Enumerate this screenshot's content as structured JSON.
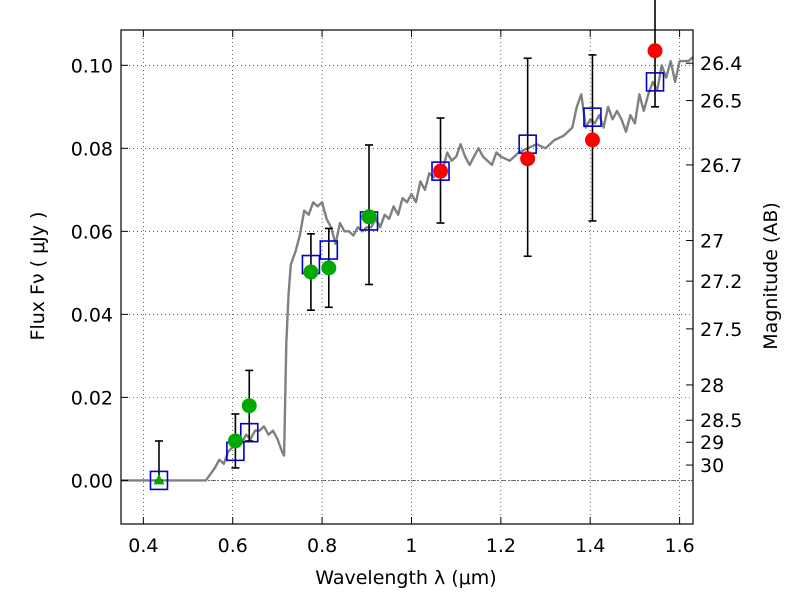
{
  "chart_data": {
    "type": "scatter",
    "xlabel": "Wavelength  λ (μm)",
    "ylabel": "Flux  Fν  ( μJy )",
    "ylabel_right": "Magnitude (AB)",
    "xlim": [
      0.35,
      1.63
    ],
    "ylim": [
      -0.0105,
      0.1085
    ],
    "grid": true,
    "x_ticks": [
      0.4,
      0.6,
      0.8,
      1.0,
      1.2,
      1.4,
      1.6
    ],
    "x_tick_labels": [
      "0.4",
      "0.6",
      "0.8",
      "1",
      "1.2",
      "1.4",
      "1.6"
    ],
    "y_ticks": [
      0.0,
      0.02,
      0.04,
      0.06,
      0.08,
      0.1
    ],
    "y_tick_labels": [
      "0.00",
      "0.02",
      "0.04",
      "0.06",
      "0.08",
      "0.10"
    ],
    "right_ticks": [
      {
        "label": "26.4",
        "flux": 0.1005
      },
      {
        "label": "26.5",
        "flux": 0.0915
      },
      {
        "label": "26.7",
        "flux": 0.076
      },
      {
        "label": "27",
        "flux": 0.0578
      },
      {
        "label": "27.2",
        "flux": 0.048
      },
      {
        "label": "27.5",
        "flux": 0.0365
      },
      {
        "label": "28",
        "flux": 0.023
      },
      {
        "label": "28.5",
        "flux": 0.0145
      },
      {
        "label": "29",
        "flux": 0.0092
      },
      {
        "label": "30",
        "flux": 0.0037
      }
    ],
    "model_spectrum": {
      "color": "#808080",
      "x": [
        0.35,
        0.45,
        0.5,
        0.54,
        0.56,
        0.57,
        0.58,
        0.59,
        0.6,
        0.61,
        0.62,
        0.63,
        0.64,
        0.65,
        0.66,
        0.67,
        0.68,
        0.69,
        0.7,
        0.71,
        0.715,
        0.72,
        0.725,
        0.73,
        0.74,
        0.75,
        0.76,
        0.77,
        0.78,
        0.79,
        0.8,
        0.81,
        0.82,
        0.83,
        0.84,
        0.85,
        0.86,
        0.87,
        0.88,
        0.89,
        0.9,
        0.91,
        0.92,
        0.93,
        0.94,
        0.95,
        0.96,
        0.97,
        0.98,
        0.99,
        1.0,
        1.01,
        1.02,
        1.03,
        1.04,
        1.05,
        1.06,
        1.07,
        1.08,
        1.09,
        1.1,
        1.11,
        1.12,
        1.13,
        1.14,
        1.15,
        1.16,
        1.17,
        1.18,
        1.19,
        1.2,
        1.22,
        1.24,
        1.26,
        1.28,
        1.3,
        1.32,
        1.34,
        1.36,
        1.37,
        1.38,
        1.39,
        1.4,
        1.41,
        1.42,
        1.43,
        1.44,
        1.45,
        1.46,
        1.47,
        1.48,
        1.49,
        1.5,
        1.51,
        1.52,
        1.53,
        1.54,
        1.55,
        1.56,
        1.57,
        1.58,
        1.59,
        1.6,
        1.61,
        1.62,
        1.63
      ],
      "y": [
        0.0,
        0.0,
        0.0,
        0.0,
        0.003,
        0.005,
        0.004,
        0.007,
        0.008,
        0.01,
        0.009,
        0.011,
        0.01,
        0.012,
        0.012,
        0.013,
        0.011,
        0.012,
        0.01,
        0.007,
        0.006,
        0.033,
        0.045,
        0.052,
        0.055,
        0.059,
        0.065,
        0.064,
        0.067,
        0.066,
        0.067,
        0.063,
        0.061,
        0.057,
        0.062,
        0.06,
        0.06,
        0.059,
        0.061,
        0.06,
        0.061,
        0.061,
        0.063,
        0.061,
        0.064,
        0.063,
        0.066,
        0.064,
        0.068,
        0.067,
        0.069,
        0.067,
        0.072,
        0.07,
        0.074,
        0.073,
        0.076,
        0.075,
        0.079,
        0.077,
        0.078,
        0.081,
        0.078,
        0.076,
        0.078,
        0.08,
        0.078,
        0.077,
        0.076,
        0.079,
        0.078,
        0.077,
        0.079,
        0.08,
        0.081,
        0.08,
        0.082,
        0.083,
        0.085,
        0.09,
        0.093,
        0.085,
        0.087,
        0.086,
        0.088,
        0.085,
        0.09,
        0.087,
        0.089,
        0.087,
        0.084,
        0.088,
        0.086,
        0.093,
        0.089,
        0.093,
        0.096,
        0.094,
        0.1,
        0.097,
        0.101,
        0.096,
        0.101,
        0.101,
        0.101,
        0.102
      ]
    },
    "series": [
      {
        "marker": "open-square",
        "color": "#0000cc",
        "x": [
          0.435,
          0.606,
          0.637,
          0.775,
          0.815,
          0.905,
          1.065,
          1.26,
          1.405,
          1.545
        ],
        "y": [
          0.0,
          0.007,
          0.0115,
          0.052,
          0.0555,
          0.0625,
          0.0745,
          0.081,
          0.0875,
          0.096
        ]
      },
      {
        "marker": "filled-circle",
        "color": "#00aa00",
        "x": [
          0.606,
          0.637,
          0.775,
          0.815,
          0.905
        ],
        "y": [
          0.0095,
          0.018,
          0.0502,
          0.0512,
          0.0635
        ],
        "yerr_low": [
          0.0065,
          0.0085,
          0.0092,
          0.0095,
          0.0163
        ],
        "yerr_high": [
          0.0065,
          0.0085,
          0.0092,
          0.0095,
          0.0173
        ]
      },
      {
        "marker": "filled-circle",
        "color": "#ff0000",
        "x": [
          1.065,
          1.26,
          1.405,
          1.545
        ],
        "y": [
          0.0745,
          0.0775,
          0.082,
          0.1035
        ],
        "yerr_low": [
          0.0125,
          0.0235,
          0.0195,
          0.0135
        ],
        "yerr_high": [
          0.0128,
          0.0242,
          0.0205,
          0.0135
        ]
      },
      {
        "marker": "filled-triangle",
        "color": "#00aa00",
        "x": [
          0.435
        ],
        "y": [
          0.0
        ],
        "yerr_low": [
          0.0
        ],
        "yerr_high": [
          0.0095
        ]
      }
    ]
  }
}
